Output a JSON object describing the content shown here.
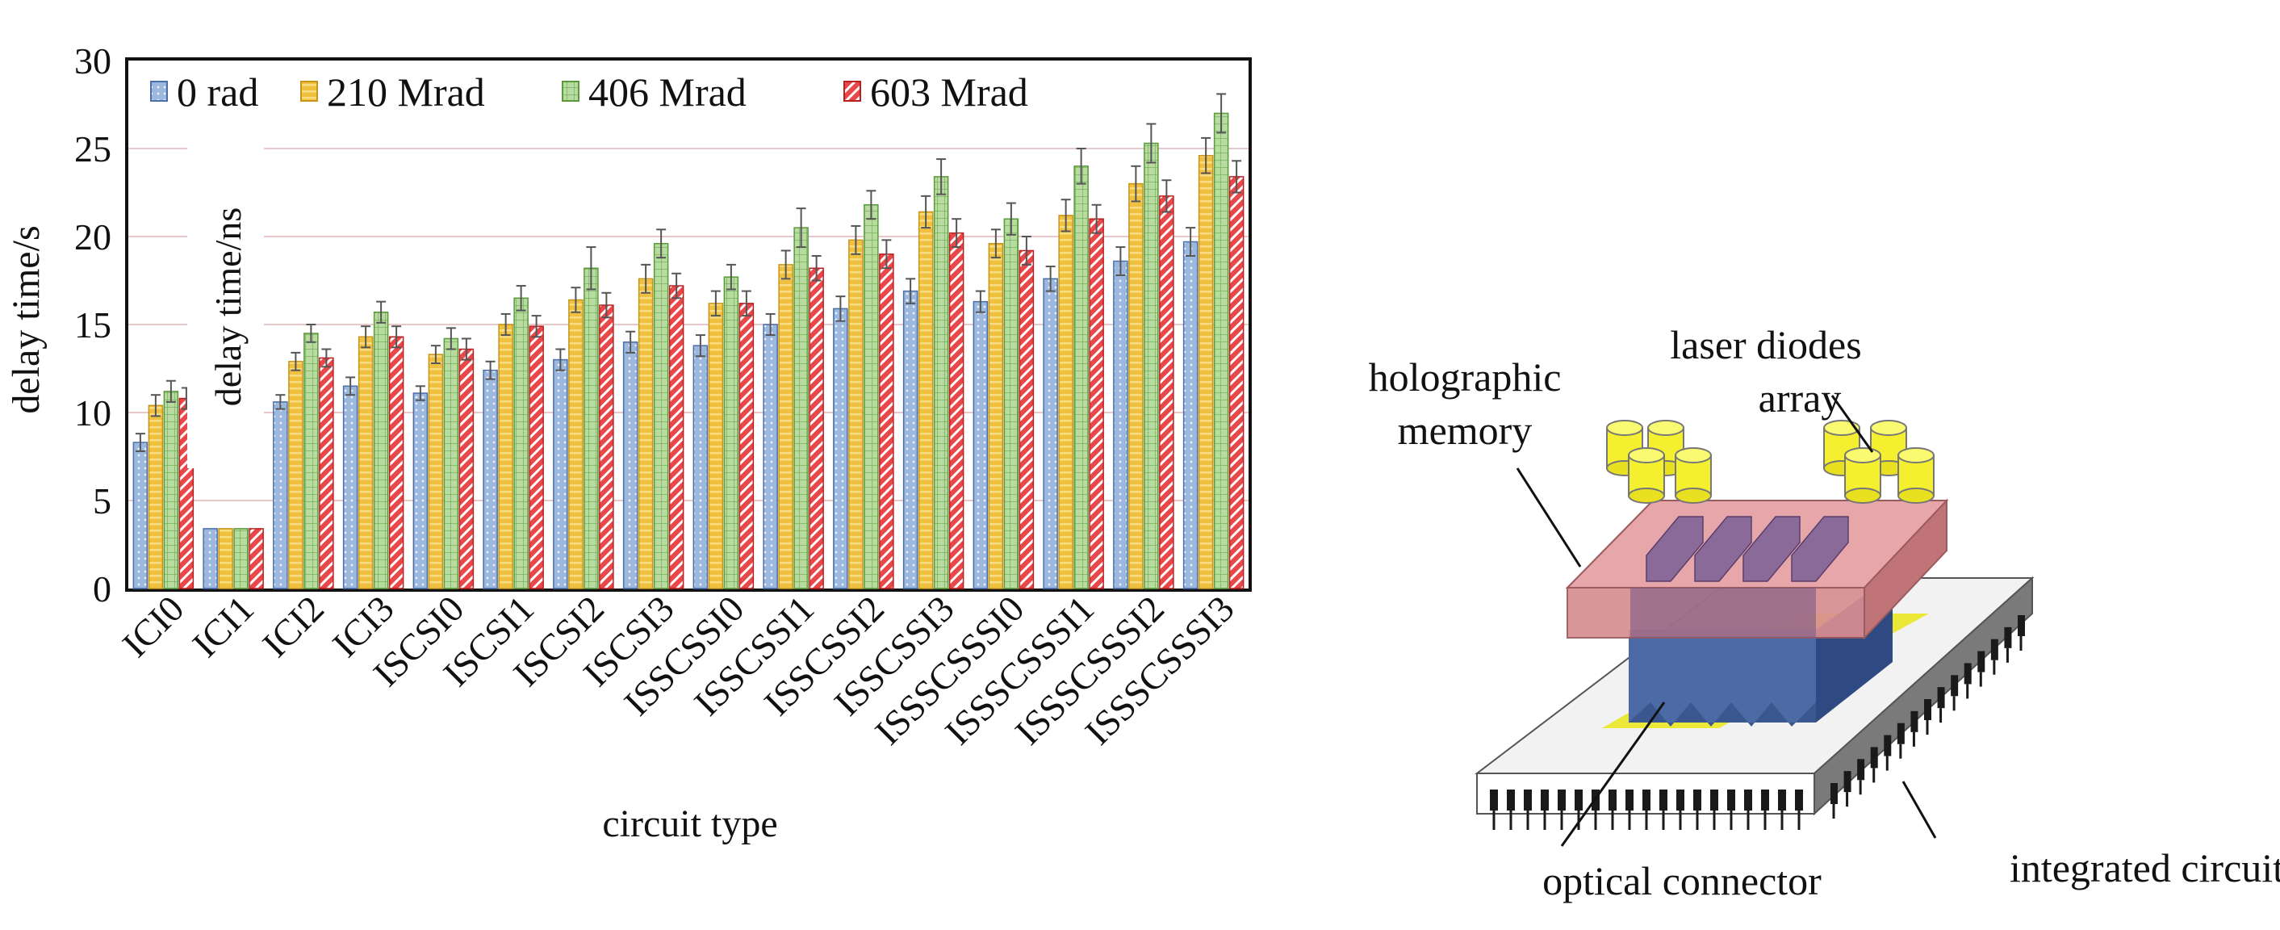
{
  "chart_data": {
    "type": "bar",
    "title": "",
    "xlabel": "circuit type",
    "ylabel": "delay time/s",
    "inset_label": "delay time/ns",
    "ylim": [
      0,
      30
    ],
    "yticks": [
      0,
      5,
      10,
      15,
      20,
      25,
      30
    ],
    "grid": true,
    "legend_position": "top",
    "error_bars": true,
    "categories": [
      "ICI0",
      "ICI1",
      "ICI2",
      "ICI3",
      "ISCSI0",
      "ISCSI1",
      "ISCSI2",
      "ISCSI3",
      "ISSCSSI0",
      "ISSCSSI1",
      "ISSCSSI2",
      "ISSCSSI3",
      "ISSSCSSSI0",
      "ISSSCSSSI1",
      "ISSSCSSSI2",
      "ISSSCSSSI3"
    ],
    "series": [
      {
        "name": "0 rad",
        "color": "#9db8de",
        "pattern": "dots",
        "values": [
          8.3,
          3.4,
          10.6,
          11.5,
          11.1,
          12.4,
          13.0,
          14.0,
          13.8,
          15.0,
          15.9,
          16.9,
          16.3,
          17.6,
          18.6,
          19.7
        ],
        "errors": [
          0.5,
          0,
          0.4,
          0.5,
          0.4,
          0.5,
          0.6,
          0.6,
          0.6,
          0.6,
          0.7,
          0.7,
          0.6,
          0.7,
          0.8,
          0.8
        ]
      },
      {
        "name": "210 Mrad",
        "color": "#f0c040",
        "pattern": "stripes",
        "values": [
          10.4,
          3.4,
          12.9,
          14.3,
          13.3,
          15.0,
          16.4,
          17.6,
          16.2,
          18.4,
          19.8,
          21.4,
          19.6,
          21.2,
          23.0,
          24.6
        ],
        "errors": [
          0.6,
          0,
          0.5,
          0.6,
          0.5,
          0.6,
          0.7,
          0.8,
          0.7,
          0.8,
          0.8,
          0.9,
          0.8,
          0.9,
          1.0,
          1.0
        ]
      },
      {
        "name": "406 Mrad",
        "color": "#b8dca0",
        "pattern": "grid",
        "values": [
          11.2,
          3.4,
          14.5,
          15.7,
          14.2,
          16.5,
          18.2,
          19.6,
          17.7,
          20.5,
          21.8,
          23.4,
          21.0,
          24.0,
          25.3,
          27.0
        ],
        "errors": [
          0.6,
          0,
          0.5,
          0.6,
          0.6,
          0.7,
          1.2,
          0.8,
          0.7,
          1.1,
          0.8,
          1.0,
          0.9,
          1.0,
          1.1,
          1.1
        ]
      },
      {
        "name": "603 Mrad",
        "color": "#e8484a",
        "pattern": "diagonal",
        "values": [
          10.8,
          3.4,
          13.1,
          14.3,
          13.6,
          14.9,
          16.1,
          17.2,
          16.2,
          18.2,
          19.0,
          20.2,
          19.2,
          21.0,
          22.3,
          23.4
        ],
        "errors": [
          0.6,
          0,
          0.5,
          0.6,
          0.6,
          0.6,
          0.7,
          0.7,
          0.7,
          0.7,
          0.8,
          0.8,
          0.8,
          0.8,
          0.9,
          0.9
        ]
      }
    ]
  },
  "diagram": {
    "labels": {
      "holographic_memory": [
        "holographic",
        "memory"
      ],
      "laser_diodes": [
        "laser diodes",
        "array"
      ],
      "optical_connector": "optical connector",
      "integrated_circuit": "integrated circuit"
    },
    "colors": {
      "laser": "#f4f030",
      "memory": "#d88a8e",
      "connector": "#4c6aa6",
      "chip_top": "#f0f0f0",
      "chip_side": "#808080",
      "chip_pad": "#ece838",
      "pins": "#1a1a1a"
    }
  }
}
